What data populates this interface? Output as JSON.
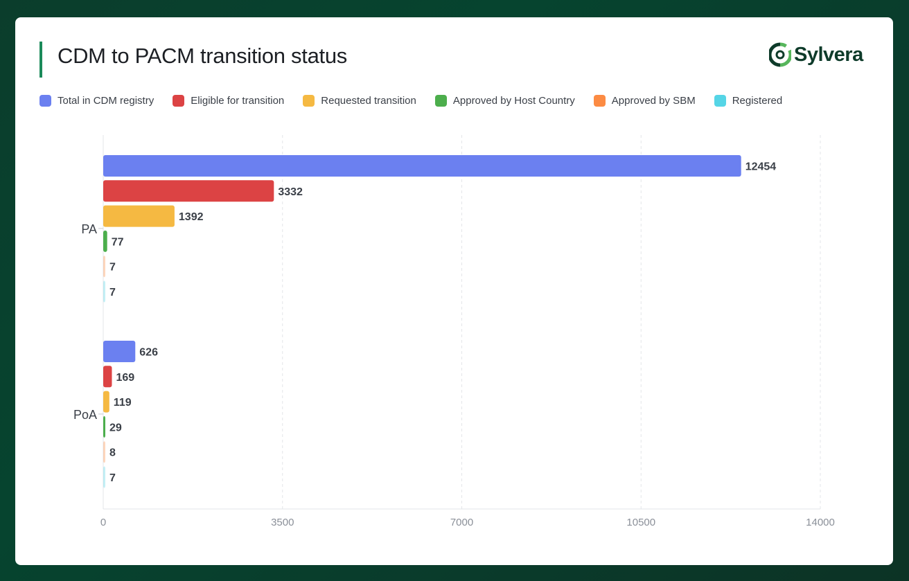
{
  "header": {
    "title": "CDM to PACM transition status",
    "logo_text": "Sylvera"
  },
  "colors": {
    "title_accent": "#1b8a5a",
    "logo_dark": "#0e3b2a",
    "logo_light": "#57b65c"
  },
  "chart_data": {
    "type": "bar",
    "orientation": "horizontal",
    "title": "CDM to PACM transition status",
    "categories": [
      "PA",
      "PoA"
    ],
    "xlim": [
      0,
      14000
    ],
    "x_ticks": [
      0,
      3500,
      7000,
      10500,
      14000
    ],
    "grid": true,
    "legend_position": "top-left",
    "series": [
      {
        "name": "Total in CDM registry",
        "color": "#6b80f0",
        "values": [
          12454,
          626
        ]
      },
      {
        "name": "Eligible for transition",
        "color": "#dc4344",
        "values": [
          3332,
          169
        ]
      },
      {
        "name": "Requested transition",
        "color": "#f5b942",
        "values": [
          1392,
          119
        ]
      },
      {
        "name": "Approved by Host Country",
        "color": "#4cae4c",
        "values": [
          77,
          29
        ]
      },
      {
        "name": "Approved by SBM",
        "color": "#fc8b43",
        "values": [
          7,
          8
        ]
      },
      {
        "name": "Registered",
        "color": "#55d5e6",
        "values": [
          7,
          7
        ]
      }
    ]
  }
}
